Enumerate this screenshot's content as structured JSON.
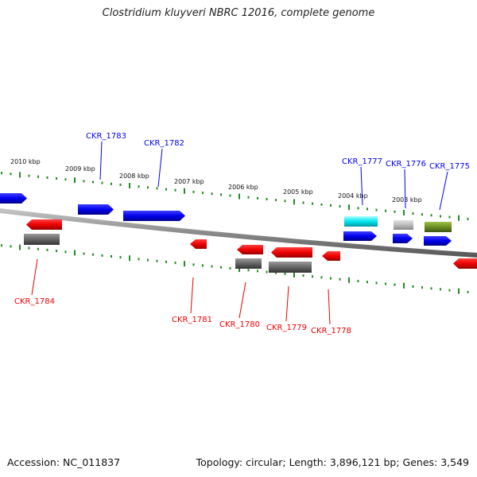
{
  "title": "Clostridium kluyveri NBRC 12016, complete genome",
  "footer": {
    "accession": "Accession: NC_011837",
    "info": "Topology: circular; Length: 3,896,121 bp; Genes: 3,549"
  },
  "colors": {
    "plus_strand": "#0000ee",
    "minus_strand": "#ee0000",
    "cyan": "#00e5ee",
    "gray": "#666666",
    "light_gray": "#bbbbbb",
    "olive": "#6b8e23",
    "tick_green": "#228b22",
    "backbone": "#888888"
  },
  "kbp_labels": [
    "2010 kbp",
    "2009 kbp",
    "2008 kbp",
    "2007 kbp",
    "2006 kbp",
    "2005 kbp",
    "2004 kbp",
    "2003 kbp"
  ],
  "genes_top": [
    "CKR_1783",
    "CKR_1782",
    "CKR_1777",
    "CKR_1776",
    "CKR_1775"
  ],
  "genes_bottom": [
    "CKR_1784",
    "CKR_1781",
    "CKR_1780",
    "CKR_1779",
    "CKR_1778"
  ]
}
